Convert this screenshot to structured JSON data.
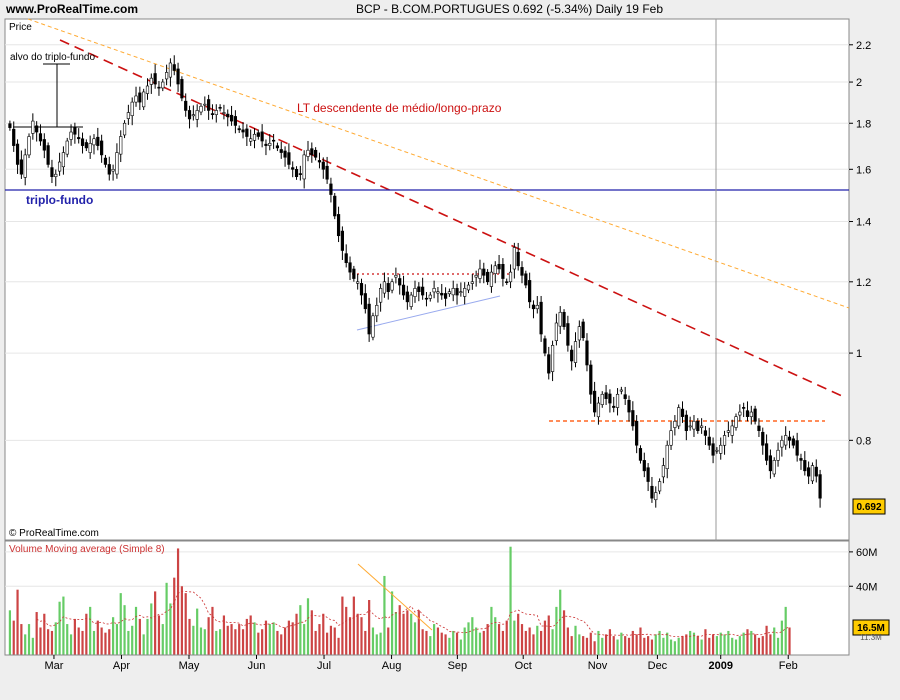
{
  "header": {
    "site": "www.ProRealTime.com",
    "title": "BCP - B.COM.PORTUGUES   0.692 (-5.34%)   Daily  19 Feb"
  },
  "price_panel": {
    "label": "Price",
    "copyright": "© ProRealTime.com",
    "last_price_badge": "0.692",
    "annotations": {
      "target": "alvo do triplo-fundo",
      "downtrend": "LT descendente de médio/longo-prazo",
      "triple_bottom": "triplo-fundo"
    }
  },
  "volume_panel": {
    "label": "Volume Moving average (Simple 8)",
    "last_volume_badge": "16.5M",
    "badge_under": "11.3M"
  },
  "colors": {
    "up_volume": "#66cc66",
    "down_volume": "#cc4444",
    "moving_average": "#cc3333",
    "support_line": "#2222aa",
    "trend_line": "#cc1111",
    "resistance": "#ff6622",
    "long_trend": "#ffaa33",
    "badge": "#ffcc00"
  },
  "chart_data": [
    {
      "type": "candlestick",
      "scale": "log",
      "x_tick_labels": [
        "Mar",
        "Apr",
        "May",
        "Jun",
        "Jul",
        "Aug",
        "Sep",
        "Oct",
        "Nov",
        "Dec",
        "2009",
        "Feb"
      ],
      "y_ticks": [
        0.8,
        1,
        1.2,
        1.4,
        1.6,
        1.8,
        2,
        2.2
      ],
      "ylim": [
        0.62,
        2.35
      ],
      "last_close": 0.692,
      "triple_bottom_level": 1.54,
      "target_level": 2.15,
      "resistance_level": 0.875,
      "closes": [
        1.78,
        1.7,
        1.62,
        1.58,
        1.66,
        1.74,
        1.81,
        1.76,
        1.72,
        1.68,
        1.62,
        1.57,
        1.58,
        1.63,
        1.67,
        1.72,
        1.76,
        1.75,
        1.73,
        1.7,
        1.69,
        1.71,
        1.73,
        1.7,
        1.66,
        1.62,
        1.58,
        1.6,
        1.67,
        1.74,
        1.8,
        1.85,
        1.9,
        1.93,
        1.9,
        1.95,
        1.98,
        2.02,
        1.99,
        1.97,
        2.0,
        2.05,
        2.1,
        2.06,
        1.99,
        1.92,
        1.86,
        1.82,
        1.84,
        1.86,
        1.88,
        1.89,
        1.86,
        1.84,
        1.86,
        1.87,
        1.85,
        1.83,
        1.81,
        1.79,
        1.77,
        1.76,
        1.74,
        1.73,
        1.75,
        1.74,
        1.72,
        1.7,
        1.71,
        1.72,
        1.69,
        1.67,
        1.65,
        1.62,
        1.6,
        1.57,
        1.58,
        1.66,
        1.68,
        1.66,
        1.65,
        1.63,
        1.6,
        1.56,
        1.5,
        1.42,
        1.35,
        1.3,
        1.26,
        1.23,
        1.21,
        1.2,
        1.16,
        1.12,
        1.05,
        1.1,
        1.13,
        1.18,
        1.2,
        1.17,
        1.2,
        1.22,
        1.19,
        1.16,
        1.14,
        1.16,
        1.18,
        1.17,
        1.16,
        1.15,
        1.16,
        1.18,
        1.17,
        1.16,
        1.15,
        1.17,
        1.18,
        1.16,
        1.17,
        1.18,
        1.19,
        1.2,
        1.22,
        1.24,
        1.22,
        1.2,
        1.23,
        1.25,
        1.24,
        1.21,
        1.2,
        1.23,
        1.31,
        1.25,
        1.22,
        1.19,
        1.14,
        1.12,
        1.13,
        1.05,
        1.0,
        0.95,
        1.02,
        1.08,
        1.11,
        1.07,
        1.02,
        0.98,
        1.03,
        1.07,
        1.04,
        0.97,
        0.9,
        0.86,
        0.88,
        0.9,
        0.89,
        0.88,
        0.87,
        0.9,
        0.91,
        0.89,
        0.86,
        0.83,
        0.79,
        0.76,
        0.74,
        0.72,
        0.69,
        0.7,
        0.72,
        0.75,
        0.79,
        0.82,
        0.84,
        0.87,
        0.85,
        0.82,
        0.83,
        0.84,
        0.82,
        0.83,
        0.81,
        0.79,
        0.77,
        0.78,
        0.79,
        0.81,
        0.82,
        0.83,
        0.85,
        0.86,
        0.87,
        0.85,
        0.86,
        0.84,
        0.82,
        0.79,
        0.76,
        0.74,
        0.76,
        0.78,
        0.8,
        0.81,
        0.8,
        0.79,
        0.77,
        0.76,
        0.74,
        0.73,
        0.75,
        0.73,
        0.69
      ]
    },
    {
      "type": "bar",
      "title": "Volume Moving average (Simple 8)",
      "y_tick_labels": [
        "60M",
        "40M"
      ],
      "ylim": [
        0,
        64
      ],
      "volumes": [
        26,
        20,
        38,
        18,
        12,
        18,
        10,
        25,
        16,
        24,
        15,
        14,
        19,
        31,
        34,
        18,
        12,
        21,
        16,
        14,
        24,
        28,
        14,
        20,
        16,
        13,
        15,
        22,
        18,
        36,
        29,
        14,
        17,
        28,
        21,
        12,
        21,
        30,
        37,
        23,
        18,
        42,
        30,
        45,
        62,
        40,
        36,
        21,
        17,
        27,
        16,
        15,
        22,
        28,
        14,
        15,
        23,
        17,
        18,
        15,
        18,
        15,
        21,
        23,
        19,
        13,
        15,
        20,
        18,
        19,
        14,
        12,
        16,
        20,
        19,
        24,
        29,
        18,
        33,
        26,
        14,
        18,
        24,
        13,
        17,
        16,
        10,
        34,
        28,
        22,
        34,
        24,
        22,
        14,
        32,
        16,
        12,
        13,
        46,
        16,
        37,
        25,
        29,
        24,
        26,
        24,
        19,
        26,
        15,
        14,
        11,
        18,
        16,
        13,
        12,
        10,
        14,
        13,
        9,
        16,
        19,
        22,
        16,
        13,
        14,
        18,
        28,
        22,
        18,
        14,
        20,
        63,
        20,
        24,
        18,
        14,
        16,
        12,
        17,
        14,
        20,
        23,
        15,
        28,
        38,
        26,
        16,
        11,
        17,
        12,
        11,
        10,
        13,
        8,
        14,
        10,
        12,
        15,
        11,
        9,
        13,
        11,
        10,
        14,
        12,
        16,
        10,
        11,
        9,
        12,
        14,
        10,
        13,
        9,
        8,
        10,
        11,
        12,
        14,
        13,
        11,
        9,
        15,
        10,
        12,
        11,
        13,
        12,
        14,
        10,
        9,
        11,
        13,
        15,
        14,
        12,
        10,
        11,
        17,
        12,
        16,
        10,
        20,
        28,
        16
      ]
    }
  ]
}
